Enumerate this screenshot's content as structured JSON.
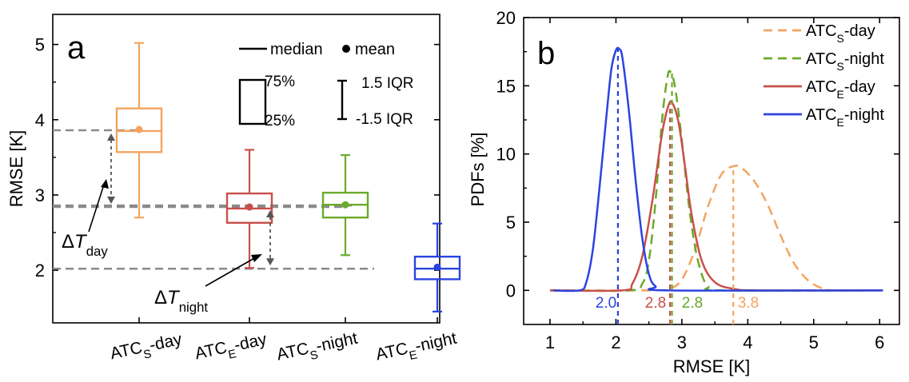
{
  "chart_data": [
    {
      "type": "box",
      "panel_label": "a",
      "ylabel": "RMSE [K]",
      "ylim": [
        1.3,
        5.4
      ],
      "yticks": [
        2,
        3,
        4,
        5
      ],
      "categories": [
        {
          "base": "ATC",
          "sub": "S",
          "suffix": "-day"
        },
        {
          "base": "ATC",
          "sub": "E",
          "suffix": "-day"
        },
        {
          "base": "ATC",
          "sub": "S",
          "suffix": "-night"
        },
        {
          "base": "ATC",
          "sub": "E",
          "suffix": "-night"
        }
      ],
      "boxes": [
        {
          "color": "#f4a460",
          "q1": 3.57,
          "median": 3.85,
          "q3": 4.15,
          "lower": 2.7,
          "upper": 5.02,
          "mean": 3.87
        },
        {
          "color": "#c8504b",
          "q1": 2.63,
          "median": 2.82,
          "q3": 3.02,
          "lower": 2.03,
          "upper": 3.6,
          "mean": 2.84
        },
        {
          "color": "#6aaa2a",
          "q1": 2.7,
          "median": 2.87,
          "q3": 3.03,
          "lower": 2.2,
          "upper": 3.53,
          "mean": 2.87
        },
        {
          "color": "#2b44e0",
          "q1": 1.88,
          "median": 2.02,
          "q3": 2.18,
          "lower": 1.45,
          "upper": 2.62,
          "mean": 2.04
        }
      ],
      "reference_lines": [
        3.86,
        2.84,
        2.86,
        2.02
      ],
      "legend": {
        "median": "median",
        "mean": "mean",
        "q3": "75%",
        "q1": "25%",
        "whisker_top": "1.5 IQR",
        "whisker_bottom": "-1.5 IQR"
      },
      "annotations": [
        {
          "delta": "Δ",
          "var": "T",
          "sub": "day",
          "from": 2.84,
          "to": 3.86
        },
        {
          "delta": "Δ",
          "var": "T",
          "sub": "night",
          "from": 2.02,
          "to": 2.84
        }
      ]
    },
    {
      "type": "line",
      "panel_label": "b",
      "xlabel": "RMSE [K]",
      "ylabel": "PDFs [%]",
      "xlim": [
        0.6,
        6.3
      ],
      "ylim": [
        -2.5,
        20
      ],
      "xticks": [
        1,
        2,
        3,
        4,
        5,
        6
      ],
      "yticks": [
        0,
        5,
        10,
        15,
        20
      ],
      "series": [
        {
          "base": "ATC",
          "sub": "S",
          "suffix": "-day",
          "color": "#f4a460",
          "dash": "12,7",
          "width": 2.5,
          "points": [
            [
              1.0,
              0
            ],
            [
              2.5,
              0
            ],
            [
              2.8,
              0.1
            ],
            [
              3.0,
              0.8
            ],
            [
              3.2,
              3.0
            ],
            [
              3.4,
              6.2
            ],
            [
              3.6,
              8.5
            ],
            [
              3.78,
              9.1
            ],
            [
              3.9,
              9.0
            ],
            [
              4.1,
              8.0
            ],
            [
              4.3,
              6.3
            ],
            [
              4.5,
              4.0
            ],
            [
              4.7,
              2.0
            ],
            [
              4.9,
              0.8
            ],
            [
              5.1,
              0.2
            ],
            [
              5.3,
              0
            ],
            [
              6.0,
              0
            ]
          ],
          "marker_x": 3.78,
          "marker_label": "3.8"
        },
        {
          "base": "ATC",
          "sub": "S",
          "suffix": "-night",
          "color": "#6aaa2a",
          "dash": "12,7",
          "width": 2.5,
          "points": [
            [
              1.0,
              0
            ],
            [
              2.2,
              0
            ],
            [
              2.4,
              0.5
            ],
            [
              2.5,
              2.2
            ],
            [
              2.6,
              6.5
            ],
            [
              2.7,
              12.5
            ],
            [
              2.78,
              15.6
            ],
            [
              2.83,
              16.0
            ],
            [
              2.9,
              14.8
            ],
            [
              3.0,
              11.0
            ],
            [
              3.1,
              6.5
            ],
            [
              3.2,
              3.2
            ],
            [
              3.3,
              1.2
            ],
            [
              3.4,
              0.3
            ],
            [
              3.6,
              0
            ],
            [
              6.0,
              0
            ]
          ],
          "marker_x": 2.85,
          "marker_label": "2.8"
        },
        {
          "base": "ATC",
          "sub": "E",
          "suffix": "-day",
          "color": "#c8504b",
          "dash": "",
          "width": 2.5,
          "points": [
            [
              1.0,
              0
            ],
            [
              2.1,
              0
            ],
            [
              2.25,
              0.5
            ],
            [
              2.4,
              2.5
            ],
            [
              2.55,
              6.5
            ],
            [
              2.7,
              11.5
            ],
            [
              2.8,
              13.6
            ],
            [
              2.86,
              13.7
            ],
            [
              2.95,
              12.3
            ],
            [
              3.05,
              9.0
            ],
            [
              3.15,
              5.5
            ],
            [
              3.3,
              2.2
            ],
            [
              3.5,
              0.6
            ],
            [
              3.8,
              0.1
            ],
            [
              4.2,
              0
            ],
            [
              6.05,
              0
            ]
          ],
          "marker_x": 2.82,
          "marker_label": "2.8"
        },
        {
          "base": "ATC",
          "sub": "E",
          "suffix": "-night",
          "color": "#2b44e0",
          "dash": "",
          "width": 2.5,
          "points": [
            [
              1.05,
              0
            ],
            [
              1.45,
              0
            ],
            [
              1.55,
              0.6
            ],
            [
              1.65,
              3.0
            ],
            [
              1.75,
              7.5
            ],
            [
              1.85,
              12.5
            ],
            [
              1.93,
              16.2
            ],
            [
              2.0,
              17.6
            ],
            [
              2.05,
              17.7
            ],
            [
              2.1,
              17.0
            ],
            [
              2.2,
              13.0
            ],
            [
              2.3,
              8.0
            ],
            [
              2.4,
              3.8
            ],
            [
              2.5,
              1.2
            ],
            [
              2.6,
              0.3
            ],
            [
              2.8,
              0
            ],
            [
              6.05,
              0
            ]
          ],
          "marker_x": 2.03,
          "marker_label": "2.0"
        }
      ]
    }
  ]
}
